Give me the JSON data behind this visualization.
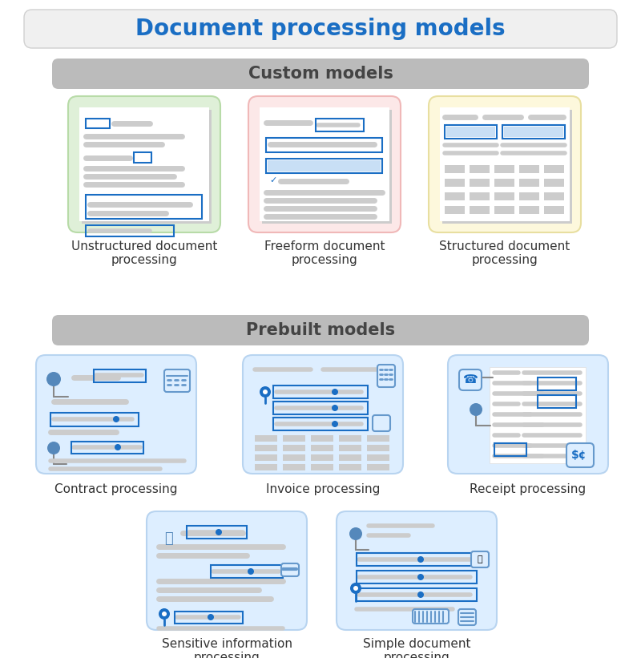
{
  "title": "Document processing models",
  "title_color": "#1a6ec4",
  "title_bg": "#eeeeee",
  "title_fontsize": 20,
  "custom_label": "Custom models",
  "custom_label_color": "#444444",
  "custom_label_bg": "#bbbbbb",
  "prebuilt_label": "Prebuilt models",
  "prebuilt_label_color": "#444444",
  "prebuilt_label_bg": "#bbbbbb",
  "bg_color": "#ffffff",
  "custom_models": [
    {
      "label": "Unstructured document\nprocessing",
      "box_color": "#dff0d8",
      "border_color": "#b8dba8"
    },
    {
      "label": "Freeform document\nprocessing",
      "box_color": "#fce8e8",
      "border_color": "#f0b8b8"
    },
    {
      "label": "Structured document\nprocessing",
      "box_color": "#fdf8dc",
      "border_color": "#e8dfa0"
    }
  ],
  "prebuilt_models_row1": [
    {
      "label": "Contract processing",
      "box_color": "#ddeeff",
      "border_color": "#b8d4f0"
    },
    {
      "label": "Invoice processing",
      "box_color": "#ddeeff",
      "border_color": "#b8d4f0"
    },
    {
      "label": "Receipt processing",
      "box_color": "#ddeeff",
      "border_color": "#b8d4f0"
    }
  ],
  "prebuilt_models_row2": [
    {
      "label": "Sensitive information\nprocessing",
      "box_color": "#ddeeff",
      "border_color": "#b8d4f0"
    },
    {
      "label": "Simple document\nprocessing",
      "box_color": "#ddeeff",
      "border_color": "#b8d4f0"
    }
  ],
  "doc_gray": "#aaaaaa",
  "doc_blue": "#1a6ec4",
  "doc_white": "#ffffff",
  "doc_light_gray": "#cccccc",
  "doc_mid_gray": "#b0b0b0"
}
